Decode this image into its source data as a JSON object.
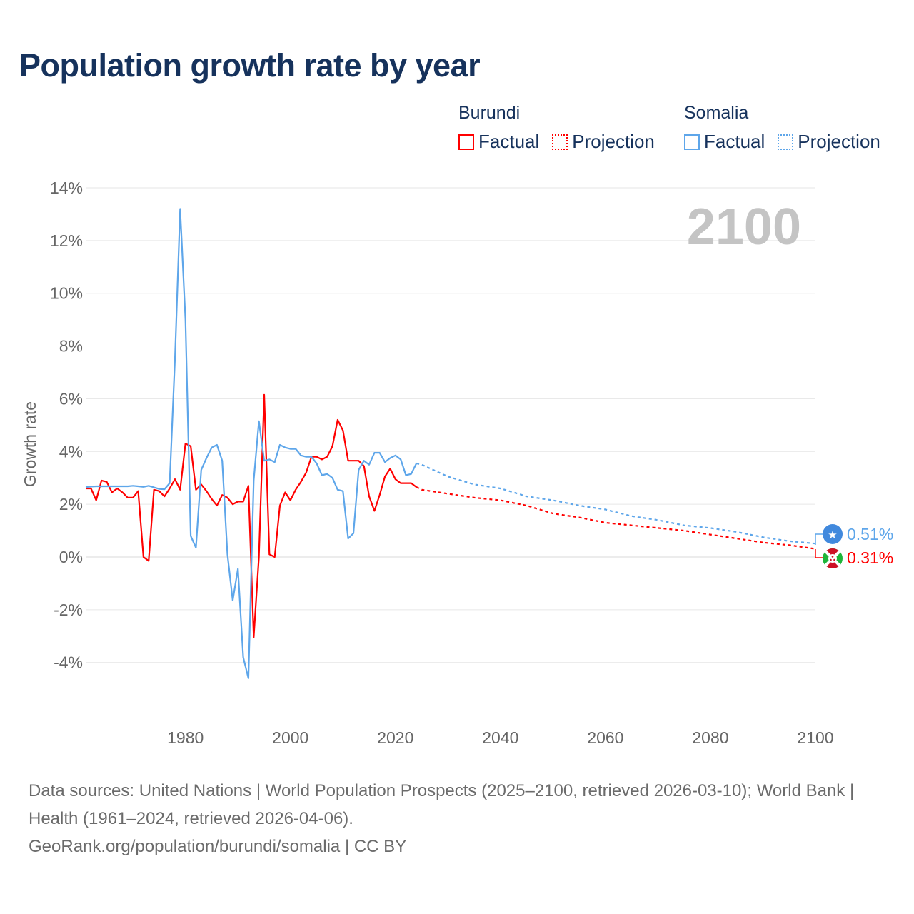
{
  "title": "Population growth rate by year",
  "legend": {
    "groups": [
      {
        "name": "Burundi",
        "color": "#ff0000",
        "items": [
          "Factual",
          "Projection"
        ]
      },
      {
        "name": "Somalia",
        "color": "#5ea6ea",
        "items": [
          "Factual",
          "Projection"
        ]
      }
    ]
  },
  "year_watermark": "2100",
  "end_labels": {
    "somalia": "0.51%",
    "burundi": "0.31%"
  },
  "footer": {
    "sources": "Data sources: United Nations | World Population Prospects (2025–2100, retrieved 2026-03-10); World Bank | Health (1961–2024, retrieved 2026-04-06).",
    "credit": "GeoRank.org/population/burundi/somalia | CC BY"
  },
  "chart_data": {
    "type": "line",
    "title": "Population growth rate by year",
    "xlabel": "",
    "ylabel": "Growth rate",
    "xlim": [
      1961,
      2100
    ],
    "ylim": [
      -6,
      14
    ],
    "x_ticks": [
      1980,
      2000,
      2020,
      2040,
      2060,
      2080,
      2100
    ],
    "x_tick_labels": [
      "1980",
      "2000",
      "2020",
      "2040",
      "2060",
      "2080",
      "2100"
    ],
    "y_ticks": [
      -4,
      -2,
      0,
      2,
      4,
      6,
      8,
      10,
      12,
      14
    ],
    "y_tick_labels": [
      "-4%",
      "-2%",
      "0%",
      "2%",
      "4%",
      "6%",
      "8%",
      "10%",
      "12%",
      "14%"
    ],
    "grid": true,
    "legend_position": "top-right",
    "series": [
      {
        "name": "Burundi Factual",
        "color": "#ff0000",
        "dash": false,
        "x": [
          1961,
          1962,
          1963,
          1964,
          1965,
          1966,
          1967,
          1968,
          1969,
          1970,
          1971,
          1972,
          1973,
          1974,
          1975,
          1976,
          1977,
          1978,
          1979,
          1980,
          1981,
          1982,
          1983,
          1984,
          1985,
          1986,
          1987,
          1988,
          1989,
          1990,
          1991,
          1992,
          1993,
          1994,
          1995,
          1996,
          1997,
          1998,
          1999,
          2000,
          2001,
          2002,
          2003,
          2004,
          2005,
          2006,
          2007,
          2008,
          2009,
          2010,
          2011,
          2012,
          2013,
          2014,
          2015,
          2016,
          2017,
          2018,
          2019,
          2020,
          2021,
          2022,
          2023,
          2024
        ],
        "y": [
          2.6,
          2.6,
          2.15,
          2.9,
          2.85,
          2.45,
          2.6,
          2.45,
          2.25,
          2.25,
          2.5,
          0.0,
          -0.15,
          2.55,
          2.5,
          2.3,
          2.6,
          2.95,
          2.55,
          4.3,
          4.2,
          2.55,
          2.75,
          2.5,
          2.2,
          1.95,
          2.35,
          2.25,
          2.0,
          2.1,
          2.1,
          2.7,
          -3.05,
          0.0,
          6.15,
          0.1,
          0.0,
          1.95,
          2.45,
          2.15,
          2.55,
          2.85,
          3.2,
          3.8,
          3.8,
          3.7,
          3.8,
          4.2,
          5.2,
          4.8,
          3.65,
          3.65,
          3.65,
          3.45,
          2.3,
          1.75,
          2.35,
          3.05,
          3.35,
          2.95,
          2.8,
          2.8,
          2.8,
          2.65
        ]
      },
      {
        "name": "Burundi Projection",
        "color": "#ff0000",
        "dash": true,
        "x": [
          2024,
          2025,
          2030,
          2035,
          2040,
          2045,
          2050,
          2055,
          2060,
          2065,
          2070,
          2075,
          2080,
          2085,
          2090,
          2095,
          2100
        ],
        "y": [
          2.65,
          2.55,
          2.4,
          2.25,
          2.15,
          1.95,
          1.65,
          1.5,
          1.3,
          1.2,
          1.1,
          1.0,
          0.85,
          0.7,
          0.55,
          0.45,
          0.31
        ]
      },
      {
        "name": "Somalia Factual",
        "color": "#5ea6ea",
        "dash": false,
        "x": [
          1961,
          1962,
          1963,
          1964,
          1965,
          1966,
          1967,
          1968,
          1969,
          1970,
          1971,
          1972,
          1973,
          1974,
          1975,
          1976,
          1977,
          1978,
          1979,
          1980,
          1981,
          1982,
          1983,
          1984,
          1985,
          1986,
          1987,
          1988,
          1989,
          1990,
          1991,
          1992,
          1993,
          1994,
          1995,
          1996,
          1997,
          1998,
          1999,
          2000,
          2001,
          2002,
          2003,
          2004,
          2005,
          2006,
          2007,
          2008,
          2009,
          2010,
          2011,
          2012,
          2013,
          2014,
          2015,
          2016,
          2017,
          2018,
          2019,
          2020,
          2021,
          2022,
          2023,
          2024
        ],
        "y": [
          2.65,
          2.67,
          2.68,
          2.68,
          2.68,
          2.68,
          2.68,
          2.68,
          2.68,
          2.7,
          2.68,
          2.66,
          2.7,
          2.64,
          2.58,
          2.57,
          2.8,
          7.5,
          13.2,
          9.0,
          0.8,
          0.35,
          3.3,
          3.75,
          4.15,
          4.25,
          3.65,
          0.1,
          -1.65,
          -0.45,
          -3.8,
          -4.6,
          2.9,
          5.15,
          3.65,
          3.7,
          3.6,
          4.25,
          4.15,
          4.1,
          4.1,
          3.85,
          3.8,
          3.8,
          3.55,
          3.1,
          3.15,
          3.0,
          2.55,
          2.5,
          0.7,
          0.9,
          3.3,
          3.65,
          3.5,
          3.95,
          3.95,
          3.6,
          3.75,
          3.85,
          3.7,
          3.1,
          3.15,
          3.55
        ]
      },
      {
        "name": "Somalia Projection",
        "color": "#5ea6ea",
        "dash": true,
        "x": [
          2024,
          2025,
          2030,
          2035,
          2040,
          2045,
          2050,
          2055,
          2060,
          2065,
          2070,
          2075,
          2080,
          2085,
          2090,
          2095,
          2100
        ],
        "y": [
          3.55,
          3.5,
          3.05,
          2.75,
          2.6,
          2.3,
          2.15,
          1.95,
          1.8,
          1.55,
          1.4,
          1.2,
          1.1,
          0.95,
          0.75,
          0.6,
          0.51
        ]
      }
    ]
  }
}
